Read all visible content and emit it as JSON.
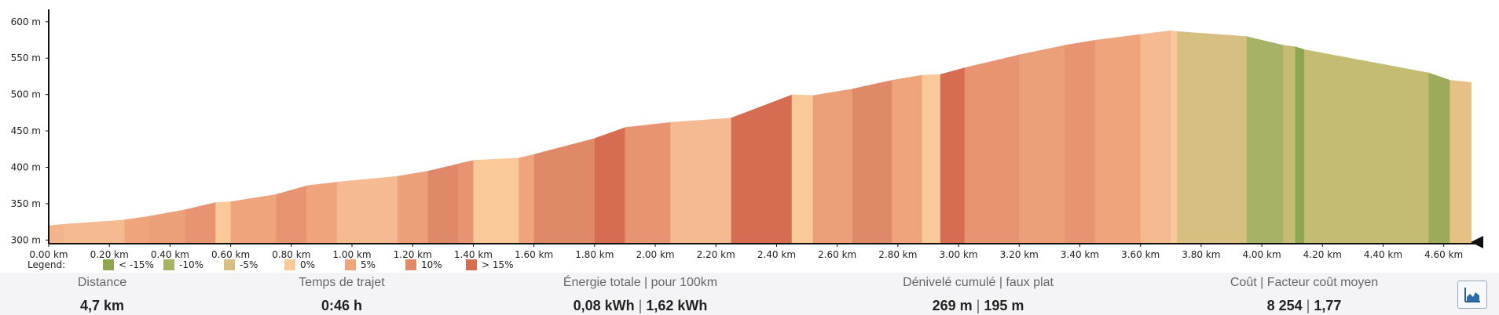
{
  "chart_data": {
    "type": "area",
    "xlabel": "",
    "ylabel": "",
    "x_unit": "km",
    "y_unit": "m",
    "xlim": [
      0,
      4.72
    ],
    "ylim": [
      295,
      617
    ],
    "x_ticks": [
      "0.00 km",
      "0.20 km",
      "0.40 km",
      "0.60 km",
      "0.80 km",
      "1.00 km",
      "1.20 km",
      "1.40 km",
      "1.60 km",
      "1.80 km",
      "2.00 km",
      "2.20 km",
      "2.40 km",
      "2.60 km",
      "2.80 km",
      "3.00 km",
      "3.20 km",
      "3.40 km",
      "3.60 km",
      "3.80 km",
      "4.00 km",
      "4.20 km",
      "4.40 km",
      "4.60 km"
    ],
    "y_ticks": [
      "300 m",
      "350 m",
      "400 m",
      "450 m",
      "500 m",
      "550 m",
      "600 m"
    ],
    "legend": {
      "title": "Legend:",
      "items": [
        {
          "label": "< -15%",
          "color": "#8fa650"
        },
        {
          "label": "-10%",
          "color": "#a8b266"
        },
        {
          "label": "-5%",
          "color": "#d7bf82"
        },
        {
          "label": "0%",
          "color": "#f9c99a"
        },
        {
          "label": "5%",
          "color": "#f0a47c"
        },
        {
          "label": "10%",
          "color": "#e08968"
        },
        {
          "label": "> 15%",
          "color": "#d66d52"
        }
      ]
    },
    "segments": [
      {
        "x0": 0.0,
        "x1": 0.05,
        "y0": 320,
        "y1": 322,
        "color": "#f3b48c"
      },
      {
        "x0": 0.05,
        "x1": 0.25,
        "y0": 322,
        "y1": 328,
        "color": "#f5ba92"
      },
      {
        "x0": 0.25,
        "x1": 0.33,
        "y0": 328,
        "y1": 333,
        "color": "#f0a47c"
      },
      {
        "x0": 0.33,
        "x1": 0.45,
        "y0": 333,
        "y1": 342,
        "color": "#eba07a"
      },
      {
        "x0": 0.45,
        "x1": 0.55,
        "y0": 342,
        "y1": 352,
        "color": "#e89473"
      },
      {
        "x0": 0.55,
        "x1": 0.6,
        "y0": 352,
        "y1": 353,
        "color": "#f9c99a"
      },
      {
        "x0": 0.6,
        "x1": 0.75,
        "y0": 353,
        "y1": 363,
        "color": "#f0a47c"
      },
      {
        "x0": 0.75,
        "x1": 0.85,
        "y0": 363,
        "y1": 375,
        "color": "#e89473"
      },
      {
        "x0": 0.85,
        "x1": 0.95,
        "y0": 375,
        "y1": 380,
        "color": "#f0a47c"
      },
      {
        "x0": 0.95,
        "x1": 1.15,
        "y0": 380,
        "y1": 388,
        "color": "#f5ba92"
      },
      {
        "x0": 1.15,
        "x1": 1.25,
        "y0": 388,
        "y1": 395,
        "color": "#eba07a"
      },
      {
        "x0": 1.25,
        "x1": 1.35,
        "y0": 395,
        "y1": 405,
        "color": "#e08968"
      },
      {
        "x0": 1.35,
        "x1": 1.4,
        "y0": 405,
        "y1": 410,
        "color": "#e89473"
      },
      {
        "x0": 1.4,
        "x1": 1.55,
        "y0": 410,
        "y1": 413,
        "color": "#f9c99a"
      },
      {
        "x0": 1.55,
        "x1": 1.6,
        "y0": 413,
        "y1": 418,
        "color": "#f0a47c"
      },
      {
        "x0": 1.6,
        "x1": 1.8,
        "y0": 418,
        "y1": 440,
        "color": "#e08968"
      },
      {
        "x0": 1.8,
        "x1": 1.9,
        "y0": 440,
        "y1": 455,
        "color": "#d66d52"
      },
      {
        "x0": 1.9,
        "x1": 2.05,
        "y0": 455,
        "y1": 462,
        "color": "#e89473"
      },
      {
        "x0": 2.05,
        "x1": 2.25,
        "y0": 462,
        "y1": 468,
        "color": "#f5ba92"
      },
      {
        "x0": 2.25,
        "x1": 2.45,
        "y0": 468,
        "y1": 500,
        "color": "#d66d52"
      },
      {
        "x0": 2.45,
        "x1": 2.52,
        "y0": 500,
        "y1": 499,
        "color": "#f9c99a"
      },
      {
        "x0": 2.52,
        "x1": 2.65,
        "y0": 499,
        "y1": 508,
        "color": "#eba07a"
      },
      {
        "x0": 2.65,
        "x1": 2.78,
        "y0": 508,
        "y1": 520,
        "color": "#e08968"
      },
      {
        "x0": 2.78,
        "x1": 2.88,
        "y0": 520,
        "y1": 527,
        "color": "#f0a47c"
      },
      {
        "x0": 2.88,
        "x1": 2.94,
        "y0": 527,
        "y1": 528,
        "color": "#f9c99a"
      },
      {
        "x0": 2.94,
        "x1": 3.02,
        "y0": 528,
        "y1": 537,
        "color": "#d66d52"
      },
      {
        "x0": 3.02,
        "x1": 3.2,
        "y0": 537,
        "y1": 555,
        "color": "#e89473"
      },
      {
        "x0": 3.2,
        "x1": 3.35,
        "y0": 555,
        "y1": 568,
        "color": "#eba07a"
      },
      {
        "x0": 3.35,
        "x1": 3.45,
        "y0": 568,
        "y1": 575,
        "color": "#e89473"
      },
      {
        "x0": 3.45,
        "x1": 3.6,
        "y0": 575,
        "y1": 583,
        "color": "#f0a47c"
      },
      {
        "x0": 3.6,
        "x1": 3.7,
        "y0": 583,
        "y1": 588,
        "color": "#f5ba92"
      },
      {
        "x0": 3.7,
        "x1": 3.72,
        "y0": 588,
        "y1": 587,
        "color": "#f9c99a"
      },
      {
        "x0": 3.72,
        "x1": 3.95,
        "y0": 587,
        "y1": 580,
        "color": "#d7bf82"
      },
      {
        "x0": 3.95,
        "x1": 4.07,
        "y0": 580,
        "y1": 568,
        "color": "#a8b266"
      },
      {
        "x0": 4.07,
        "x1": 4.11,
        "y0": 568,
        "y1": 566,
        "color": "#c4bc72"
      },
      {
        "x0": 4.11,
        "x1": 4.14,
        "y0": 566,
        "y1": 562,
        "color": "#8fa650"
      },
      {
        "x0": 4.14,
        "x1": 4.55,
        "y0": 562,
        "y1": 530,
        "color": "#c4bc72"
      },
      {
        "x0": 4.55,
        "x1": 4.62,
        "y0": 530,
        "y1": 520,
        "color": "#9dab58"
      },
      {
        "x0": 4.62,
        "x1": 4.69,
        "y0": 520,
        "y1": 517,
        "color": "#e6c185"
      }
    ]
  },
  "stats": [
    {
      "label": "Distance",
      "value": "4,7 km"
    },
    {
      "label": "Temps de trajet",
      "value": "0:46 h"
    },
    {
      "label": "Énergie totale|pour 100km",
      "value": "0,08 kWh|1,62 kWh"
    },
    {
      "label": "Dénivelé cumulé|faux plat",
      "value": "269 m|195 m"
    },
    {
      "label": "Coût|Facteur coût moyen",
      "value": "8 254|1,77"
    }
  ],
  "chart_button_icon": "line-chart-icon"
}
